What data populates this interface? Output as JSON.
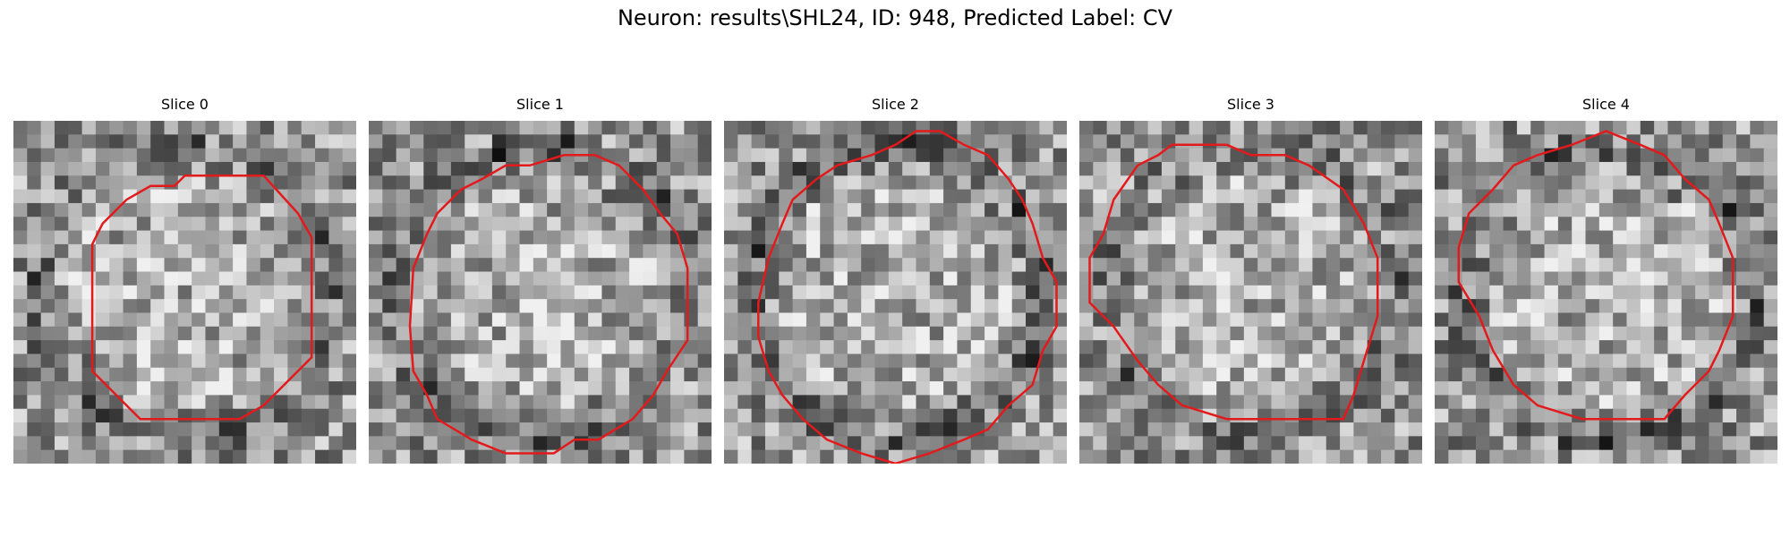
{
  "figure": {
    "title": "Neuron: results\\SHL24, ID: 948, Predicted Label: CV"
  },
  "contour_color": "#e31a1c",
  "slices": [
    {
      "label": "Slice 0",
      "seed": 11,
      "contrast": 0.45,
      "contour": [
        [
          0.5,
          0.16
        ],
        [
          0.73,
          0.16
        ],
        [
          0.83,
          0.27
        ],
        [
          0.87,
          0.34
        ],
        [
          0.87,
          0.69
        ],
        [
          0.73,
          0.83
        ],
        [
          0.66,
          0.87
        ],
        [
          0.37,
          0.87
        ],
        [
          0.23,
          0.73
        ],
        [
          0.23,
          0.36
        ],
        [
          0.26,
          0.3
        ],
        [
          0.33,
          0.23
        ],
        [
          0.4,
          0.19
        ],
        [
          0.47,
          0.19
        ]
      ]
    },
    {
      "label": "Slice 1",
      "seed": 23,
      "contrast": 0.55,
      "contour": [
        [
          0.57,
          0.1
        ],
        [
          0.66,
          0.1
        ],
        [
          0.73,
          0.13
        ],
        [
          0.8,
          0.2
        ],
        [
          0.85,
          0.27
        ],
        [
          0.9,
          0.33
        ],
        [
          0.93,
          0.43
        ],
        [
          0.93,
          0.64
        ],
        [
          0.87,
          0.73
        ],
        [
          0.83,
          0.8
        ],
        [
          0.77,
          0.87
        ],
        [
          0.67,
          0.93
        ],
        [
          0.6,
          0.93
        ],
        [
          0.54,
          0.97
        ],
        [
          0.4,
          0.97
        ],
        [
          0.3,
          0.93
        ],
        [
          0.2,
          0.87
        ],
        [
          0.17,
          0.8
        ],
        [
          0.13,
          0.73
        ],
        [
          0.12,
          0.6
        ],
        [
          0.13,
          0.43
        ],
        [
          0.17,
          0.33
        ],
        [
          0.2,
          0.27
        ],
        [
          0.27,
          0.2
        ],
        [
          0.33,
          0.17
        ],
        [
          0.4,
          0.13
        ],
        [
          0.47,
          0.13
        ]
      ]
    },
    {
      "label": "Slice 2",
      "seed": 37,
      "contrast": 0.6,
      "contour": [
        [
          0.56,
          0.03
        ],
        [
          0.63,
          0.03
        ],
        [
          0.7,
          0.07
        ],
        [
          0.77,
          0.1
        ],
        [
          0.83,
          0.17
        ],
        [
          0.87,
          0.23
        ],
        [
          0.9,
          0.3
        ],
        [
          0.93,
          0.4
        ],
        [
          0.97,
          0.47
        ],
        [
          0.97,
          0.6
        ],
        [
          0.93,
          0.67
        ],
        [
          0.9,
          0.77
        ],
        [
          0.83,
          0.83
        ],
        [
          0.77,
          0.9
        ],
        [
          0.7,
          0.93
        ],
        [
          0.6,
          0.97
        ],
        [
          0.5,
          1.0
        ],
        [
          0.4,
          0.97
        ],
        [
          0.3,
          0.93
        ],
        [
          0.23,
          0.87
        ],
        [
          0.17,
          0.8
        ],
        [
          0.13,
          0.73
        ],
        [
          0.1,
          0.63
        ],
        [
          0.1,
          0.53
        ],
        [
          0.13,
          0.4
        ],
        [
          0.17,
          0.3
        ],
        [
          0.2,
          0.23
        ],
        [
          0.27,
          0.17
        ],
        [
          0.33,
          0.13
        ],
        [
          0.43,
          0.1
        ],
        [
          0.5,
          0.07
        ]
      ]
    },
    {
      "label": "Slice 3",
      "seed": 53,
      "contrast": 0.35,
      "contour": [
        [
          0.27,
          0.07
        ],
        [
          0.43,
          0.07
        ],
        [
          0.5,
          0.1
        ],
        [
          0.6,
          0.1
        ],
        [
          0.67,
          0.13
        ],
        [
          0.77,
          0.2
        ],
        [
          0.83,
          0.3
        ],
        [
          0.87,
          0.4
        ],
        [
          0.87,
          0.57
        ],
        [
          0.83,
          0.7
        ],
        [
          0.8,
          0.8
        ],
        [
          0.77,
          0.87
        ],
        [
          0.43,
          0.87
        ],
        [
          0.3,
          0.83
        ],
        [
          0.23,
          0.77
        ],
        [
          0.17,
          0.7
        ],
        [
          0.1,
          0.6
        ],
        [
          0.03,
          0.53
        ],
        [
          0.03,
          0.4
        ],
        [
          0.07,
          0.33
        ],
        [
          0.1,
          0.23
        ],
        [
          0.17,
          0.13
        ],
        [
          0.23,
          0.1
        ]
      ]
    },
    {
      "label": "Slice 4",
      "seed": 71,
      "contrast": 0.6,
      "contour": [
        [
          0.4,
          0.07
        ],
        [
          0.5,
          0.03
        ],
        [
          0.6,
          0.07
        ],
        [
          0.67,
          0.1
        ],
        [
          0.73,
          0.17
        ],
        [
          0.8,
          0.23
        ],
        [
          0.83,
          0.3
        ],
        [
          0.87,
          0.4
        ],
        [
          0.87,
          0.57
        ],
        [
          0.83,
          0.67
        ],
        [
          0.8,
          0.73
        ],
        [
          0.73,
          0.8
        ],
        [
          0.67,
          0.87
        ],
        [
          0.53,
          0.87
        ],
        [
          0.43,
          0.87
        ],
        [
          0.3,
          0.83
        ],
        [
          0.23,
          0.77
        ],
        [
          0.17,
          0.67
        ],
        [
          0.13,
          0.57
        ],
        [
          0.07,
          0.47
        ],
        [
          0.07,
          0.37
        ],
        [
          0.1,
          0.27
        ],
        [
          0.17,
          0.2
        ],
        [
          0.23,
          0.13
        ],
        [
          0.3,
          0.1
        ]
      ]
    }
  ]
}
